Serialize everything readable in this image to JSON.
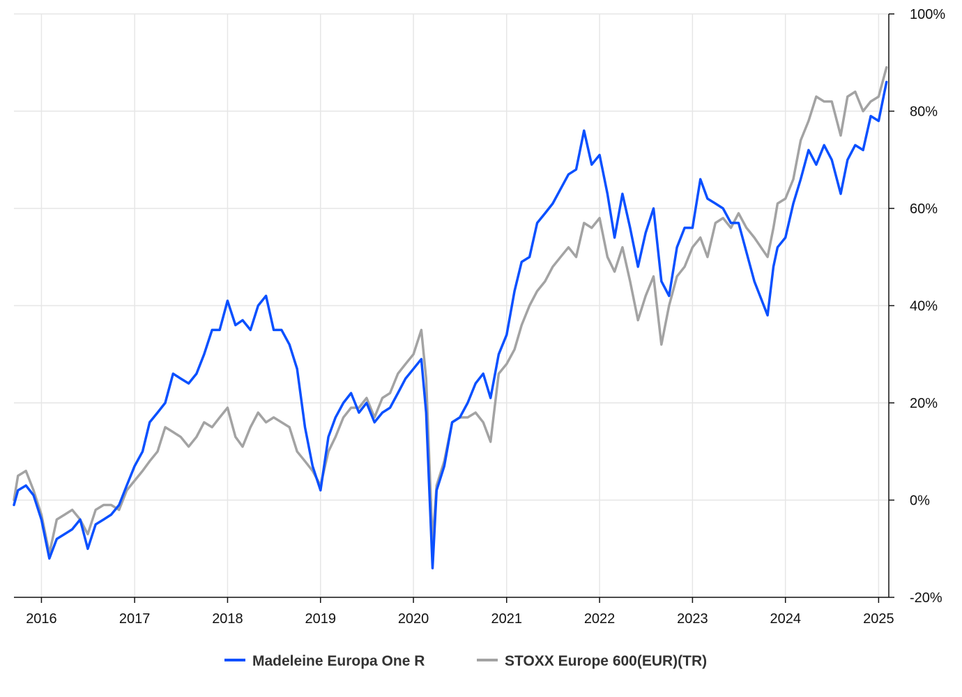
{
  "chart_data": {
    "type": "line",
    "title": "",
    "xlabel": "",
    "ylabel": "",
    "x_range": [
      "2015-09-15",
      "2025-02-10"
    ],
    "ylim": [
      -20,
      100
    ],
    "y_ticks": [
      -20,
      0,
      20,
      40,
      60,
      80,
      100
    ],
    "y_tick_labels": [
      "-20%",
      "0%",
      "20%",
      "40%",
      "60%",
      "80%",
      "100%"
    ],
    "x_ticks": [
      "2016-01-01",
      "2017-01-01",
      "2018-01-01",
      "2019-01-01",
      "2020-01-01",
      "2021-01-01",
      "2022-01-01",
      "2023-01-01",
      "2024-01-01",
      "2025-01-01"
    ],
    "x_tick_labels": [
      "2016",
      "2017",
      "2018",
      "2019",
      "2020",
      "2021",
      "2022",
      "2023",
      "2024",
      "2025"
    ],
    "grid": true,
    "legend_position": "bottom-center",
    "series": [
      {
        "name": "Madeleine Europa One R",
        "color": "#0a50ff",
        "points": [
          [
            "2015-09-15",
            -1
          ],
          [
            "2015-10-01",
            2
          ],
          [
            "2015-11-01",
            3
          ],
          [
            "2015-12-01",
            1
          ],
          [
            "2016-01-01",
            -4
          ],
          [
            "2016-02-01",
            -12
          ],
          [
            "2016-03-01",
            -8
          ],
          [
            "2016-04-01",
            -7
          ],
          [
            "2016-05-01",
            -6
          ],
          [
            "2016-06-01",
            -4
          ],
          [
            "2016-07-01",
            -10
          ],
          [
            "2016-08-01",
            -5
          ],
          [
            "2016-09-01",
            -4
          ],
          [
            "2016-10-01",
            -3
          ],
          [
            "2016-11-01",
            -1
          ],
          [
            "2016-12-01",
            3
          ],
          [
            "2017-01-01",
            7
          ],
          [
            "2017-02-01",
            10
          ],
          [
            "2017-03-01",
            16
          ],
          [
            "2017-04-01",
            18
          ],
          [
            "2017-05-01",
            20
          ],
          [
            "2017-06-01",
            26
          ],
          [
            "2017-07-01",
            25
          ],
          [
            "2017-08-01",
            24
          ],
          [
            "2017-09-01",
            26
          ],
          [
            "2017-10-01",
            30
          ],
          [
            "2017-11-01",
            35
          ],
          [
            "2017-12-01",
            35
          ],
          [
            "2018-01-01",
            41
          ],
          [
            "2018-02-01",
            36
          ],
          [
            "2018-03-01",
            37
          ],
          [
            "2018-04-01",
            35
          ],
          [
            "2018-05-01",
            40
          ],
          [
            "2018-06-01",
            42
          ],
          [
            "2018-07-01",
            35
          ],
          [
            "2018-08-01",
            35
          ],
          [
            "2018-09-01",
            32
          ],
          [
            "2018-10-01",
            27
          ],
          [
            "2018-11-01",
            15
          ],
          [
            "2018-12-01",
            7
          ],
          [
            "2019-01-01",
            2
          ],
          [
            "2019-02-01",
            13
          ],
          [
            "2019-03-01",
            17
          ],
          [
            "2019-04-01",
            20
          ],
          [
            "2019-05-01",
            22
          ],
          [
            "2019-06-01",
            18
          ],
          [
            "2019-07-01",
            20
          ],
          [
            "2019-08-01",
            16
          ],
          [
            "2019-09-01",
            18
          ],
          [
            "2019-10-01",
            19
          ],
          [
            "2019-11-01",
            22
          ],
          [
            "2019-12-01",
            25
          ],
          [
            "2020-01-01",
            27
          ],
          [
            "2020-02-01",
            29
          ],
          [
            "2020-02-20",
            18
          ],
          [
            "2020-03-16",
            -14
          ],
          [
            "2020-04-01",
            2
          ],
          [
            "2020-05-01",
            7
          ],
          [
            "2020-06-01",
            16
          ],
          [
            "2020-07-01",
            17
          ],
          [
            "2020-08-01",
            20
          ],
          [
            "2020-09-01",
            24
          ],
          [
            "2020-10-01",
            26
          ],
          [
            "2020-10-30",
            21
          ],
          [
            "2020-12-01",
            30
          ],
          [
            "2021-01-01",
            34
          ],
          [
            "2021-02-01",
            43
          ],
          [
            "2021-03-01",
            49
          ],
          [
            "2021-04-01",
            50
          ],
          [
            "2021-05-01",
            57
          ],
          [
            "2021-06-01",
            59
          ],
          [
            "2021-07-01",
            61
          ],
          [
            "2021-08-01",
            64
          ],
          [
            "2021-09-01",
            67
          ],
          [
            "2021-10-01",
            68
          ],
          [
            "2021-11-01",
            76
          ],
          [
            "2021-12-01",
            69
          ],
          [
            "2022-01-01",
            71
          ],
          [
            "2022-02-01",
            63
          ],
          [
            "2022-03-01",
            54
          ],
          [
            "2022-04-01",
            63
          ],
          [
            "2022-05-01",
            56
          ],
          [
            "2022-06-01",
            48
          ],
          [
            "2022-07-01",
            55
          ],
          [
            "2022-08-01",
            60
          ],
          [
            "2022-09-01",
            45
          ],
          [
            "2022-10-01",
            42
          ],
          [
            "2022-11-01",
            52
          ],
          [
            "2022-12-01",
            56
          ],
          [
            "2023-01-01",
            56
          ],
          [
            "2023-02-01",
            66
          ],
          [
            "2023-03-01",
            62
          ],
          [
            "2023-04-01",
            61
          ],
          [
            "2023-05-01",
            60
          ],
          [
            "2023-06-01",
            57
          ],
          [
            "2023-07-01",
            57
          ],
          [
            "2023-08-01",
            51
          ],
          [
            "2023-09-01",
            45
          ],
          [
            "2023-10-23",
            38
          ],
          [
            "2023-11-15",
            48
          ],
          [
            "2023-12-01",
            52
          ],
          [
            "2024-01-01",
            54
          ],
          [
            "2024-02-01",
            61
          ],
          [
            "2024-03-01",
            66
          ],
          [
            "2024-04-01",
            72
          ],
          [
            "2024-05-01",
            69
          ],
          [
            "2024-06-01",
            73
          ],
          [
            "2024-07-01",
            70
          ],
          [
            "2024-08-05",
            63
          ],
          [
            "2024-09-01",
            70
          ],
          [
            "2024-10-01",
            73
          ],
          [
            "2024-11-01",
            72
          ],
          [
            "2024-12-01",
            79
          ],
          [
            "2025-01-01",
            78
          ],
          [
            "2025-02-01",
            86
          ]
        ]
      },
      {
        "name": "STOXX Europe 600(EUR)(TR)",
        "color": "#a3a3a3",
        "points": [
          [
            "2015-09-15",
            0
          ],
          [
            "2015-10-01",
            5
          ],
          [
            "2015-11-01",
            6
          ],
          [
            "2015-12-01",
            2
          ],
          [
            "2016-01-01",
            -3
          ],
          [
            "2016-02-01",
            -11
          ],
          [
            "2016-03-01",
            -4
          ],
          [
            "2016-04-01",
            -3
          ],
          [
            "2016-05-01",
            -2
          ],
          [
            "2016-06-01",
            -4
          ],
          [
            "2016-07-01",
            -7
          ],
          [
            "2016-08-01",
            -2
          ],
          [
            "2016-09-01",
            -1
          ],
          [
            "2016-10-01",
            -1
          ],
          [
            "2016-11-01",
            -2
          ],
          [
            "2016-12-01",
            2
          ],
          [
            "2017-01-01",
            4
          ],
          [
            "2017-02-01",
            6
          ],
          [
            "2017-03-01",
            8
          ],
          [
            "2017-04-01",
            10
          ],
          [
            "2017-05-01",
            15
          ],
          [
            "2017-06-01",
            14
          ],
          [
            "2017-07-01",
            13
          ],
          [
            "2017-08-01",
            11
          ],
          [
            "2017-09-01",
            13
          ],
          [
            "2017-10-01",
            16
          ],
          [
            "2017-11-01",
            15
          ],
          [
            "2017-12-01",
            17
          ],
          [
            "2018-01-01",
            19
          ],
          [
            "2018-02-01",
            13
          ],
          [
            "2018-03-01",
            11
          ],
          [
            "2018-04-01",
            15
          ],
          [
            "2018-05-01",
            18
          ],
          [
            "2018-06-01",
            16
          ],
          [
            "2018-07-01",
            17
          ],
          [
            "2018-08-01",
            16
          ],
          [
            "2018-09-01",
            15
          ],
          [
            "2018-10-01",
            10
          ],
          [
            "2018-11-01",
            8
          ],
          [
            "2018-12-01",
            6
          ],
          [
            "2019-01-01",
            3
          ],
          [
            "2019-02-01",
            10
          ],
          [
            "2019-03-01",
            13
          ],
          [
            "2019-04-01",
            17
          ],
          [
            "2019-05-01",
            19
          ],
          [
            "2019-06-01",
            19
          ],
          [
            "2019-07-01",
            21
          ],
          [
            "2019-08-01",
            17
          ],
          [
            "2019-09-01",
            21
          ],
          [
            "2019-10-01",
            22
          ],
          [
            "2019-11-01",
            26
          ],
          [
            "2019-12-01",
            28
          ],
          [
            "2020-01-01",
            30
          ],
          [
            "2020-02-01",
            35
          ],
          [
            "2020-02-20",
            25
          ],
          [
            "2020-03-16",
            -9
          ],
          [
            "2020-04-01",
            3
          ],
          [
            "2020-05-01",
            8
          ],
          [
            "2020-06-01",
            16
          ],
          [
            "2020-07-01",
            17
          ],
          [
            "2020-08-01",
            17
          ],
          [
            "2020-09-01",
            18
          ],
          [
            "2020-10-01",
            16
          ],
          [
            "2020-10-30",
            12
          ],
          [
            "2020-12-01",
            26
          ],
          [
            "2021-01-01",
            28
          ],
          [
            "2021-02-01",
            31
          ],
          [
            "2021-03-01",
            36
          ],
          [
            "2021-04-01",
            40
          ],
          [
            "2021-05-01",
            43
          ],
          [
            "2021-06-01",
            45
          ],
          [
            "2021-07-01",
            48
          ],
          [
            "2021-08-01",
            50
          ],
          [
            "2021-09-01",
            52
          ],
          [
            "2021-10-01",
            50
          ],
          [
            "2021-11-01",
            57
          ],
          [
            "2021-12-01",
            56
          ],
          [
            "2022-01-01",
            58
          ],
          [
            "2022-02-01",
            50
          ],
          [
            "2022-03-01",
            47
          ],
          [
            "2022-04-01",
            52
          ],
          [
            "2022-05-01",
            45
          ],
          [
            "2022-06-01",
            37
          ],
          [
            "2022-07-01",
            42
          ],
          [
            "2022-08-01",
            46
          ],
          [
            "2022-09-01",
            32
          ],
          [
            "2022-10-01",
            40
          ],
          [
            "2022-11-01",
            46
          ],
          [
            "2022-12-01",
            48
          ],
          [
            "2023-01-01",
            52
          ],
          [
            "2023-02-01",
            54
          ],
          [
            "2023-03-01",
            50
          ],
          [
            "2023-04-01",
            57
          ],
          [
            "2023-05-01",
            58
          ],
          [
            "2023-06-01",
            56
          ],
          [
            "2023-07-01",
            59
          ],
          [
            "2023-08-01",
            56
          ],
          [
            "2023-09-01",
            54
          ],
          [
            "2023-10-23",
            50
          ],
          [
            "2023-11-15",
            56
          ],
          [
            "2023-12-01",
            61
          ],
          [
            "2024-01-01",
            62
          ],
          [
            "2024-02-01",
            66
          ],
          [
            "2024-03-01",
            74
          ],
          [
            "2024-04-01",
            78
          ],
          [
            "2024-05-01",
            83
          ],
          [
            "2024-06-01",
            82
          ],
          [
            "2024-07-01",
            82
          ],
          [
            "2024-08-05",
            75
          ],
          [
            "2024-09-01",
            83
          ],
          [
            "2024-10-01",
            84
          ],
          [
            "2024-11-01",
            80
          ],
          [
            "2024-12-01",
            82
          ],
          [
            "2025-01-01",
            83
          ],
          [
            "2025-02-01",
            89
          ]
        ]
      }
    ]
  }
}
